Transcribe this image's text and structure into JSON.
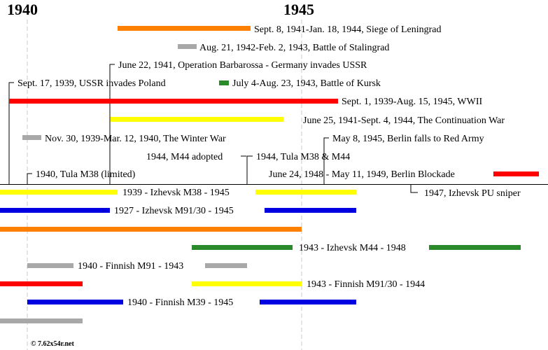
{
  "header": {
    "year_1940": "1940",
    "year_1945": "1945"
  },
  "colors": {
    "orange": "#ff8000",
    "gray": "#a8a8a8",
    "green": "#2a8a2a",
    "red": "#ff0000",
    "yellow": "#ffff00",
    "blue": "#0000e0",
    "black": "#000000",
    "dash": "#c8c8c8"
  },
  "events": {
    "leningrad": "Sept. 8, 1941-Jan. 18, 1944, Siege of Leningrad",
    "stalingrad": "Aug. 21, 1942-Feb. 2, 1943, Battle of Stalingrad",
    "barbarossa": "June 22, 1941, Operation Barbarossa - Germany invades USSR",
    "poland": "Sept. 17, 1939, USSR invades Poland",
    "kursk": "July 4-Aug. 23, 1943, Battle of Kursk",
    "wwii": "Sept. 1, 1939-Aug. 15, 1945, WWII",
    "continuation_war": "June 25, 1941-Sept. 4, 1944, The Continuation War",
    "winter_war": "Nov. 30, 1939-Mar. 12, 1940, The Winter War",
    "berlin_falls": "May 8, 1945, Berlin falls to Red Army",
    "m44_adopted": "1944, M44 adopted",
    "tula_m38_m44": "1944, Tula M38 & M44",
    "tula_m38_limited": "1940, Tula M38 (limited)",
    "berlin_blockade": "June 24, 1948 - May 11, 1949, Berlin Blockade",
    "izhevsk_pu": "1947, Izhevsk PU sniper"
  },
  "production": {
    "izhevsk_m38": "1939 - Izhevsk M38 - 1945",
    "izhevsk_m9130": "1927 - Izhevsk M91/30 - 1945",
    "izhevsk_m44": "1943 - Izhevsk M44 - 1948",
    "finnish_m91": "1940 - Finnish M91 - 1943",
    "finnish_m9130": "1943 - Finnish M91/30 - 1944",
    "finnish_m39": "1940 - Finnish M39 - 1945"
  },
  "footer": {
    "copyright": "© 7.62x54r.net"
  }
}
